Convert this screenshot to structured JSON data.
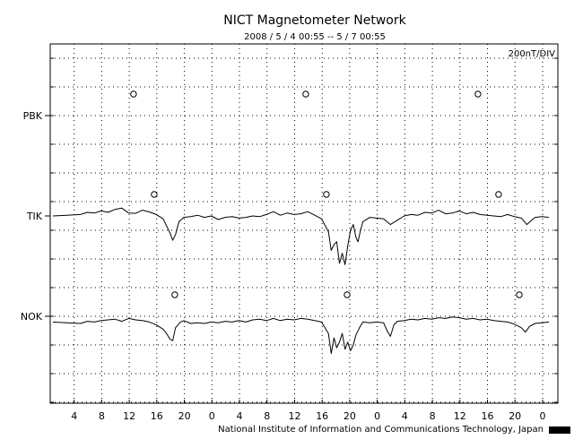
{
  "chart_data": {
    "type": "line",
    "title": "NICT Magnetometer Network",
    "subtitle": "2008 / 5 / 4   00:55 --  5 / 7   00:55",
    "scale_label": "200nT/DIV",
    "footer": "National Institute of Information and Communications Technology, Japan",
    "x_tick_labels": [
      "4",
      "8",
      "12",
      "16",
      "20",
      "0",
      "4",
      "8",
      "12",
      "16",
      "20",
      "0",
      "4",
      "8",
      "12",
      "16",
      "20",
      "0"
    ],
    "x_tick_hours": [
      3.083,
      7.083,
      11.083,
      15.083,
      19.083,
      23.083,
      27.083,
      31.083,
      35.083,
      39.083,
      43.083,
      47.083,
      51.083,
      55.083,
      59.083,
      63.083,
      67.083,
      71.083
    ],
    "xlim_hours": [
      0,
      72
    ],
    "grid": true,
    "series": [
      {
        "name": "PBK",
        "markers_hours": [
          11.7,
          36.7,
          61.7
        ],
        "points": []
      },
      {
        "name": "TIK",
        "markers_hours": [
          14.7,
          39.7,
          64.7
        ],
        "points": [
          [
            0,
            0
          ],
          [
            2,
            5
          ],
          [
            4,
            10
          ],
          [
            5,
            25
          ],
          [
            6,
            20
          ],
          [
            7,
            35
          ],
          [
            8,
            25
          ],
          [
            9,
            45
          ],
          [
            10,
            55
          ],
          [
            11,
            20
          ],
          [
            12,
            18
          ],
          [
            13,
            40
          ],
          [
            14,
            28
          ],
          [
            15,
            10
          ],
          [
            16,
            -20
          ],
          [
            17,
            -120
          ],
          [
            17.4,
            -170
          ],
          [
            17.8,
            -130
          ],
          [
            18.3,
            -40
          ],
          [
            19,
            -10
          ],
          [
            20,
            -5
          ],
          [
            21,
            5
          ],
          [
            22,
            -10
          ],
          [
            23,
            0
          ],
          [
            24,
            -25
          ],
          [
            25,
            -10
          ],
          [
            26,
            -5
          ],
          [
            27,
            -15
          ],
          [
            28,
            -10
          ],
          [
            29,
            0
          ],
          [
            30,
            -5
          ],
          [
            31,
            10
          ],
          [
            32,
            30
          ],
          [
            33,
            5
          ],
          [
            34,
            20
          ],
          [
            35,
            10
          ],
          [
            36,
            15
          ],
          [
            37,
            30
          ],
          [
            38,
            5
          ],
          [
            39,
            -20
          ],
          [
            40,
            -110
          ],
          [
            40.4,
            -240
          ],
          [
            40.8,
            -200
          ],
          [
            41.2,
            -180
          ],
          [
            41.6,
            -330
          ],
          [
            42,
            -260
          ],
          [
            42.4,
            -340
          ],
          [
            42.8,
            -210
          ],
          [
            43.2,
            -100
          ],
          [
            43.6,
            -60
          ],
          [
            44,
            -150
          ],
          [
            44.3,
            -180
          ],
          [
            44.6,
            -110
          ],
          [
            45,
            -40
          ],
          [
            46,
            -10
          ],
          [
            47,
            -15
          ],
          [
            48,
            -20
          ],
          [
            49,
            -60
          ],
          [
            50,
            -30
          ],
          [
            51,
            0
          ],
          [
            52,
            10
          ],
          [
            53,
            5
          ],
          [
            54,
            25
          ],
          [
            55,
            20
          ],
          [
            56,
            40
          ],
          [
            57,
            15
          ],
          [
            58,
            20
          ],
          [
            59,
            35
          ],
          [
            60,
            15
          ],
          [
            61,
            25
          ],
          [
            62,
            10
          ],
          [
            63,
            5
          ],
          [
            64,
            0
          ],
          [
            65,
            -5
          ],
          [
            66,
            10
          ],
          [
            67,
            -5
          ],
          [
            68,
            -15
          ],
          [
            68.8,
            -60
          ],
          [
            69.5,
            -30
          ],
          [
            70,
            -10
          ],
          [
            71,
            -5
          ],
          [
            72,
            -10
          ]
        ]
      },
      {
        "name": "NOK",
        "markers_hours": [
          17.7,
          42.7,
          67.7
        ],
        "points": [
          [
            0,
            -40
          ],
          [
            2,
            -45
          ],
          [
            4,
            -50
          ],
          [
            5,
            -35
          ],
          [
            6,
            -40
          ],
          [
            7,
            -30
          ],
          [
            8,
            -25
          ],
          [
            9,
            -20
          ],
          [
            10,
            -35
          ],
          [
            11,
            -15
          ],
          [
            12,
            -25
          ],
          [
            13,
            -30
          ],
          [
            14,
            -40
          ],
          [
            15,
            -60
          ],
          [
            16,
            -90
          ],
          [
            16.5,
            -120
          ],
          [
            17,
            -160
          ],
          [
            17.4,
            -170
          ],
          [
            17.8,
            -80
          ],
          [
            18.5,
            -40
          ],
          [
            19,
            -30
          ],
          [
            20,
            -50
          ],
          [
            21,
            -45
          ],
          [
            22,
            -50
          ],
          [
            23,
            -40
          ],
          [
            24,
            -45
          ],
          [
            25,
            -35
          ],
          [
            26,
            -40
          ],
          [
            27,
            -30
          ],
          [
            28,
            -40
          ],
          [
            29,
            -25
          ],
          [
            30,
            -20
          ],
          [
            31,
            -30
          ],
          [
            32,
            -15
          ],
          [
            33,
            -30
          ],
          [
            34,
            -20
          ],
          [
            35,
            -25
          ],
          [
            36,
            -15
          ],
          [
            37,
            -20
          ],
          [
            38,
            -30
          ],
          [
            39,
            -40
          ],
          [
            40,
            -120
          ],
          [
            40.4,
            -260
          ],
          [
            40.8,
            -150
          ],
          [
            41.2,
            -220
          ],
          [
            41.6,
            -180
          ],
          [
            42,
            -120
          ],
          [
            42.4,
            -230
          ],
          [
            42.8,
            -180
          ],
          [
            43.2,
            -240
          ],
          [
            43.6,
            -200
          ],
          [
            44,
            -130
          ],
          [
            44.5,
            -80
          ],
          [
            45,
            -40
          ],
          [
            46,
            -45
          ],
          [
            47,
            -40
          ],
          [
            48,
            -45
          ],
          [
            48.5,
            -100
          ],
          [
            49,
            -140
          ],
          [
            49.5,
            -60
          ],
          [
            50,
            -35
          ],
          [
            51,
            -30
          ],
          [
            52,
            -20
          ],
          [
            53,
            -25
          ],
          [
            54,
            -15
          ],
          [
            55,
            -20
          ],
          [
            56,
            -10
          ],
          [
            57,
            -15
          ],
          [
            58,
            -5
          ],
          [
            59,
            -10
          ],
          [
            60,
            -20
          ],
          [
            61,
            -15
          ],
          [
            62,
            -25
          ],
          [
            63,
            -20
          ],
          [
            64,
            -30
          ],
          [
            65,
            -35
          ],
          [
            66,
            -40
          ],
          [
            67,
            -55
          ],
          [
            68,
            -80
          ],
          [
            68.6,
            -110
          ],
          [
            69.2,
            -70
          ],
          [
            70,
            -50
          ],
          [
            71,
            -45
          ],
          [
            72,
            -40
          ]
        ]
      }
    ]
  }
}
